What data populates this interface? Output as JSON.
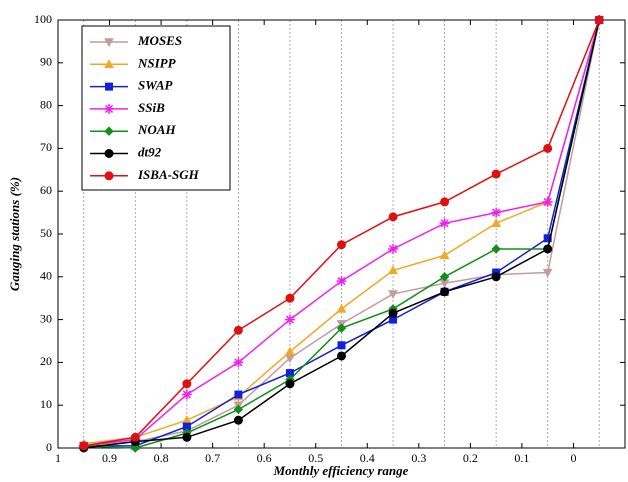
{
  "chart_data": {
    "type": "line",
    "xlabel": "Monthly efficiency range",
    "ylabel": "Gauging stations (%)",
    "x": [
      0.95,
      0.85,
      0.75,
      0.65,
      0.55,
      0.45,
      0.35,
      0.25,
      0.15,
      0.05,
      -0.05
    ],
    "xlim": [
      1,
      -0.1
    ],
    "xticks": [
      1,
      0.9,
      0.8,
      0.7,
      0.6,
      0.5,
      0.4,
      0.3,
      0.2,
      0.1,
      0
    ],
    "ylim": [
      0,
      100
    ],
    "yticks": [
      0,
      10,
      20,
      30,
      40,
      50,
      60,
      70,
      80,
      90,
      100
    ],
    "grid": true,
    "legend": "upper left",
    "series": [
      {
        "name": "MOSES",
        "color": "#c49aa4",
        "marker": "triangle-down",
        "values": [
          0.5,
          1.5,
          4,
          10,
          21,
          29,
          36,
          38.5,
          40.5,
          41,
          100
        ]
      },
      {
        "name": "NSIPP",
        "color": "#f5a623",
        "marker": "triangle-up",
        "values": [
          1,
          2.5,
          6.5,
          12,
          22.5,
          32.5,
          41.5,
          45,
          52.5,
          57.5,
          100
        ]
      },
      {
        "name": "SWAP",
        "color": "#1020e0",
        "marker": "square",
        "values": [
          0.5,
          0.5,
          5,
          12.5,
          17.5,
          24,
          30,
          36.5,
          41,
          49,
          100
        ]
      },
      {
        "name": "SSiB",
        "color": "#f020f0",
        "marker": "star",
        "values": [
          0.5,
          2,
          12.5,
          20,
          30,
          39,
          46.5,
          52.5,
          55,
          57.5,
          100
        ]
      },
      {
        "name": "NOAH",
        "color": "#10901a",
        "marker": "diamond",
        "values": [
          0.5,
          0,
          3.5,
          9,
          16,
          28,
          32.5,
          40,
          46.5,
          46.5,
          100
        ]
      },
      {
        "name": "dt92",
        "color": "#000000",
        "marker": "circle",
        "values": [
          0,
          1.5,
          2.5,
          6.5,
          15,
          21.5,
          31.5,
          36.5,
          40,
          46.5,
          100
        ]
      },
      {
        "name": "ISBA-SGH",
        "color": "#e01010",
        "marker": "circle",
        "values": [
          0.5,
          2.5,
          15,
          27.5,
          35,
          47.5,
          54,
          57.5,
          64,
          70,
          100
        ]
      }
    ]
  }
}
